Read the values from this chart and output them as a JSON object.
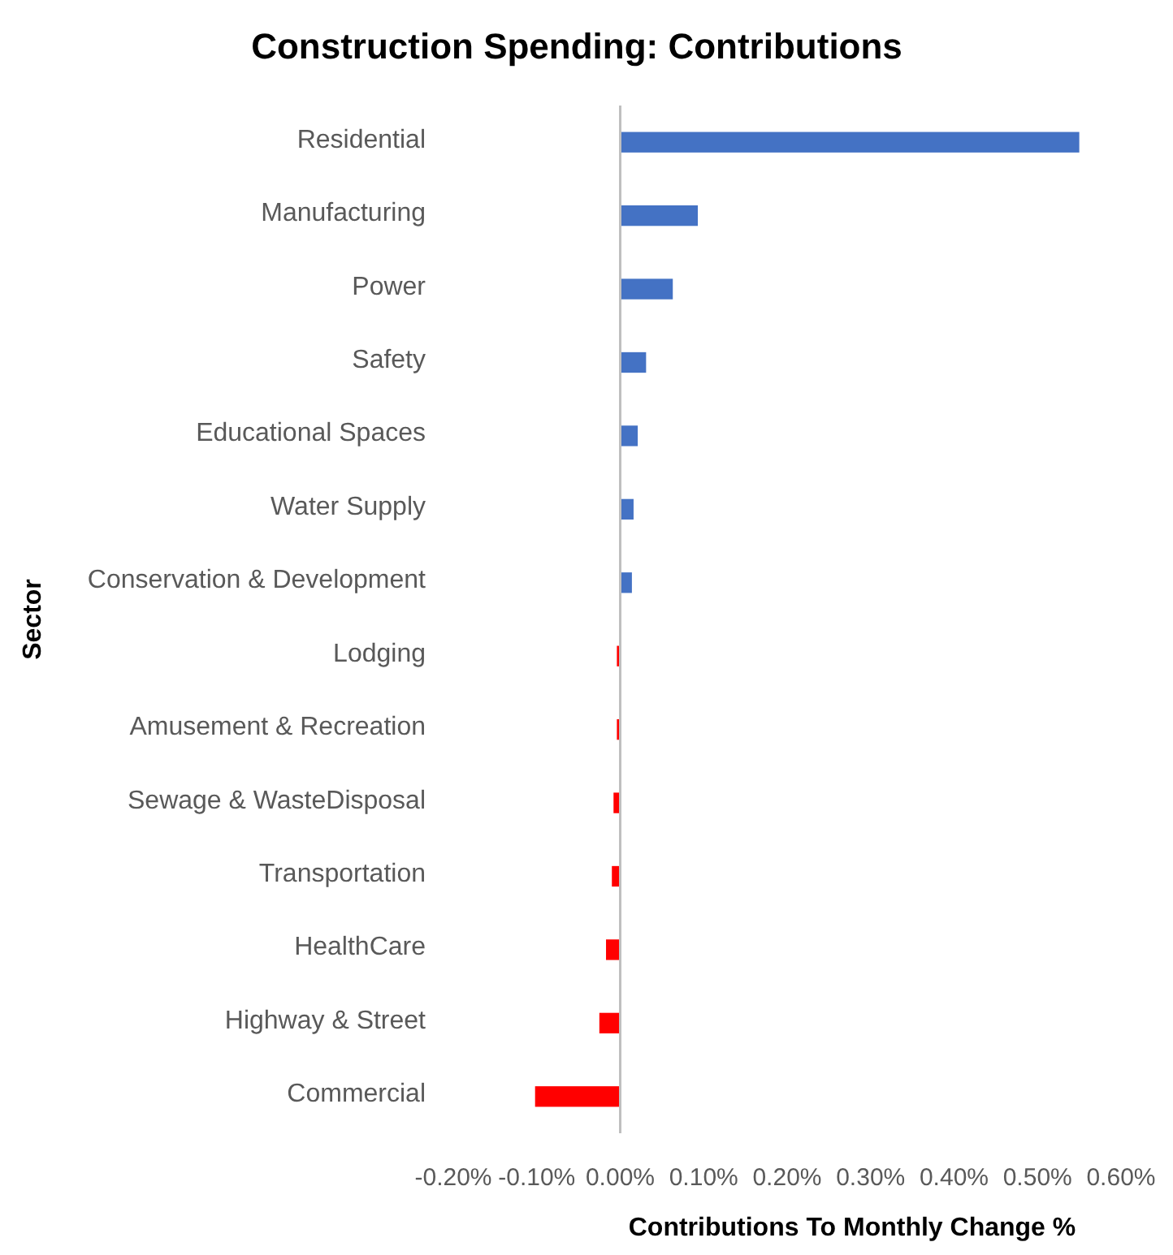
{
  "chart_data": {
    "type": "bar",
    "orientation": "horizontal",
    "title": "Construction Spending: Contributions",
    "xlabel": "Contributions To Monthly Change %",
    "ylabel": "Sector",
    "categories": [
      "Residential",
      "Manufacturing",
      "Power",
      "Safety",
      "Educational Spaces",
      "Water Supply",
      "Conservation & Development",
      "Lodging",
      "Amusement & Recreation",
      "Sewage & WasteDisposal",
      "Transportation",
      "HealthCare",
      "Highway & Street",
      "Commercial"
    ],
    "values": [
      0.55,
      0.093,
      0.063,
      0.031,
      0.021,
      0.016,
      0.014,
      -0.004,
      -0.004,
      -0.008,
      -0.01,
      -0.017,
      -0.025,
      -0.102
    ],
    "colors": [
      "#4472c4",
      "#4472c4",
      "#4472c4",
      "#4472c4",
      "#4472c4",
      "#4472c4",
      "#4472c4",
      "#ff0000",
      "#ff0000",
      "#ff0000",
      "#ff0000",
      "#ff0000",
      "#ff0000",
      "#ff0000"
    ],
    "xlim": [
      -0.2,
      0.6
    ],
    "xticks": [
      {
        "value": -0.2,
        "label": "-0.20%"
      },
      {
        "value": -0.1,
        "label": "-0.10%"
      },
      {
        "value": 0,
        "label": "0.00%"
      },
      {
        "value": 0.1,
        "label": "0.10%"
      },
      {
        "value": 0.2,
        "label": "0.20%"
      },
      {
        "value": 0.3,
        "label": "0.30%"
      },
      {
        "value": 0.4,
        "label": "0.40%"
      },
      {
        "value": 0.5,
        "label": "0.50%"
      },
      {
        "value": 0.6,
        "label": "0.60%"
      }
    ],
    "tick_labels": true
  }
}
